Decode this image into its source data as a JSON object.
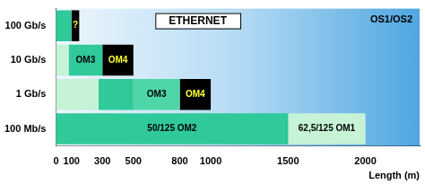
{
  "chart_data": {
    "type": "bar",
    "orientation": "horizontal",
    "title": "ETHERNET",
    "x_label": "Length (m)",
    "annotations": [
      "OS1/OS2"
    ],
    "categories": [
      "100 Gb/s",
      "10 Gb/s",
      "1 Gb/s",
      "100 Mb/s"
    ],
    "segments": [
      {
        "category": "100 Gb/s",
        "start": 0,
        "end": 100,
        "color": "#2fc99a"
      },
      {
        "category": "100 Gb/s",
        "start": 100,
        "end": 150,
        "label": "?",
        "color": "#000000"
      },
      {
        "category": "10 Gb/s",
        "start": 0,
        "end": 82,
        "color": "#c6f2d6"
      },
      {
        "category": "10 Gb/s",
        "start": 82,
        "end": 300,
        "label": "OM3",
        "color": "#2fc99a"
      },
      {
        "category": "10 Gb/s",
        "start": 300,
        "end": 500,
        "label": "OM4",
        "color": "#000000"
      },
      {
        "category": "1 Gb/s",
        "start": 0,
        "end": 275,
        "color": "#c6f2d6"
      },
      {
        "category": "1 Gb/s",
        "start": 275,
        "end": 500,
        "color": "#2fc99a"
      },
      {
        "category": "1 Gb/s",
        "start": 500,
        "end": 800,
        "label": "OM3",
        "color": "#4fd6a8"
      },
      {
        "category": "1 Gb/s",
        "start": 800,
        "end": 1000,
        "label": "OM4",
        "color": "#000000"
      },
      {
        "category": "100 Mb/s",
        "start": 0,
        "end": 1500,
        "label": "50/125 OM2",
        "color": "#2fc99a"
      },
      {
        "category": "100 Mb/s",
        "start": 1500,
        "end": 2000,
        "label": "62,5/125 OM1",
        "color": "#c6f2d6"
      }
    ],
    "xlim": [
      0,
      2350
    ],
    "xticks": [
      0,
      100,
      300,
      500,
      800,
      1000,
      1500,
      2000
    ],
    "grid": false
  }
}
